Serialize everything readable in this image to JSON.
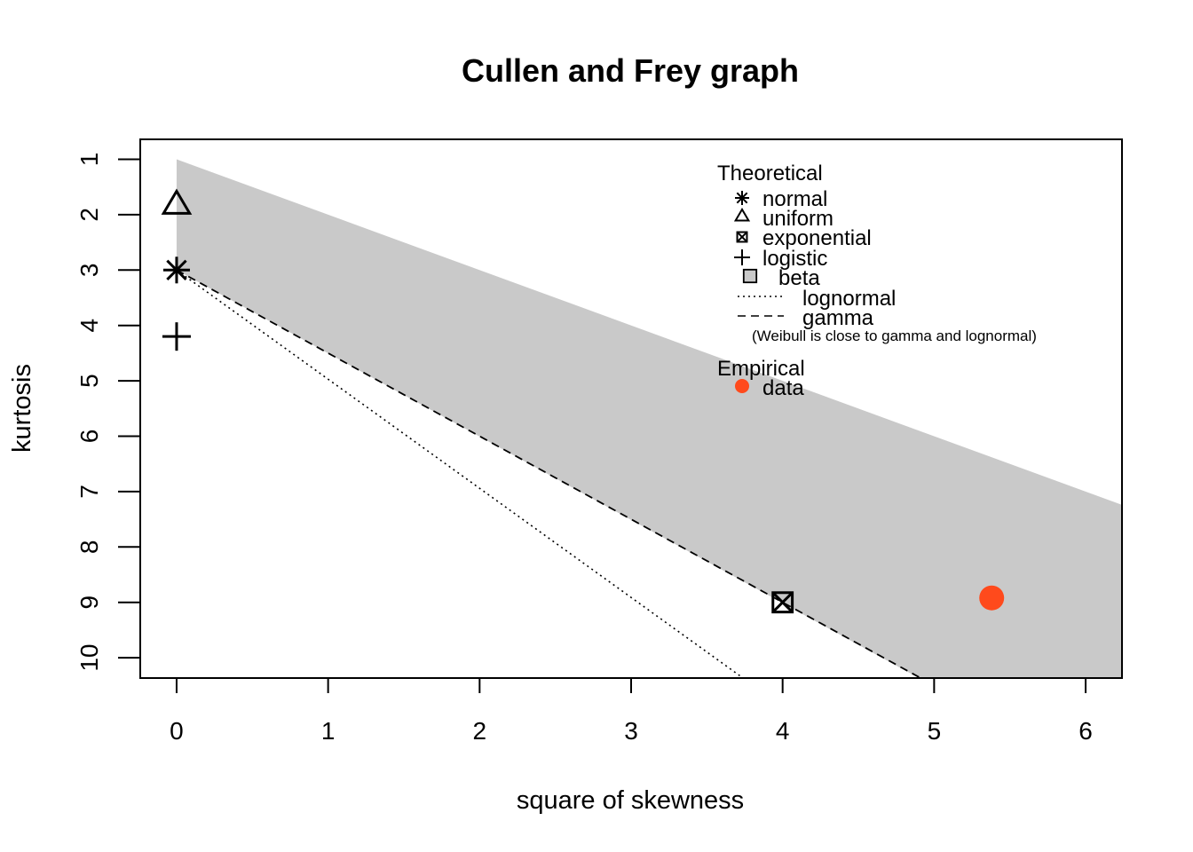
{
  "chart_data": {
    "type": "scatter",
    "title": "Cullen and Frey graph",
    "xlabel": "square of skewness",
    "ylabel": "kurtosis",
    "xlim": [
      -0.24,
      6.24
    ],
    "ylim": [
      1,
      10.35
    ],
    "y_reversed": true,
    "x_ticks": [
      "0",
      "1",
      "2",
      "3",
      "4",
      "5",
      "6"
    ],
    "y_ticks": [
      "1",
      "2",
      "3",
      "4",
      "5",
      "6",
      "7",
      "8",
      "9",
      "10"
    ],
    "theoretical_points": [
      {
        "name": "normal",
        "symbol": "asterisk",
        "x": 0,
        "y": 3
      },
      {
        "name": "uniform",
        "symbol": "triangle",
        "x": 0,
        "y": 1.8
      },
      {
        "name": "exponential",
        "symbol": "boxed-x",
        "x": 4,
        "y": 9
      },
      {
        "name": "logistic",
        "symbol": "plus",
        "x": 0,
        "y": 4.2
      }
    ],
    "beta_region": {
      "name": "beta",
      "color": "#c9c9c9",
      "upper_bound": [
        [
          0,
          1
        ],
        [
          6.24,
          7.24
        ]
      ],
      "lower_bound": [
        [
          0,
          3
        ],
        [
          6.24,
          10.35
        ]
      ]
    },
    "lines": [
      {
        "name": "lognormal",
        "style": "dotted",
        "points": [
          [
            0,
            3
          ],
          [
            3.73,
            10.35
          ]
        ]
      },
      {
        "name": "gamma",
        "style": "dashed",
        "points": [
          [
            0,
            3
          ],
          [
            4.9,
            10.35
          ]
        ]
      }
    ],
    "empirical_points": [
      {
        "name": "data",
        "x": 5.38,
        "y": 8.92,
        "color": "#ff4a1c"
      }
    ],
    "legend": {
      "placement": "top-right",
      "theoretical_heading": "Theoretical",
      "items": [
        {
          "label": "normal",
          "symbol": "asterisk"
        },
        {
          "label": "uniform",
          "symbol": "triangle"
        },
        {
          "label": "exponential",
          "symbol": "boxed-x"
        },
        {
          "label": "logistic",
          "symbol": "plus"
        },
        {
          "label": "beta",
          "symbol": "box"
        },
        {
          "label": "lognormal",
          "symbol": "dotted-line"
        },
        {
          "label": "gamma",
          "symbol": "dashed-line"
        }
      ],
      "note": "(Weibull is close to gamma and lognormal)",
      "empirical_heading": "Empirical",
      "empirical_items": [
        {
          "label": "data",
          "symbol": "dot"
        }
      ]
    }
  }
}
